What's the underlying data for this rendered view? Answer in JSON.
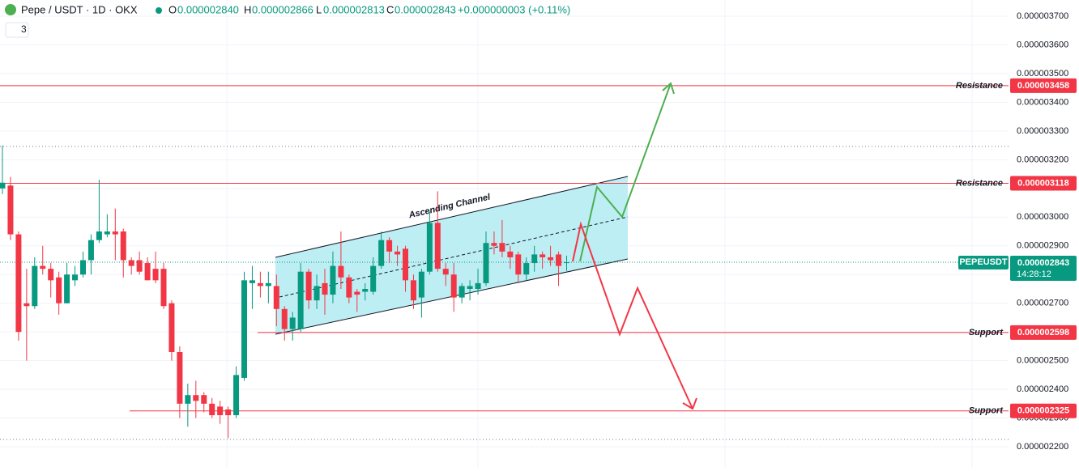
{
  "header": {
    "symbol": "Pepe / USDT · 1D · OKX",
    "o_label": "O",
    "open": "0.000002840",
    "h_label": "H",
    "high": "0.000002866",
    "l_label": "L",
    "low": "0.000002813",
    "c_label": "C",
    "close": "0.000002843",
    "change": "+0.000000003 (+0.11%)",
    "indicators": "3"
  },
  "chart_data": {
    "type": "candlestick",
    "open": [
      3.1e-06,
      3.11e-06,
      2.94e-06,
      2.7e-06,
      2.69e-06,
      2.83e-06,
      2.82e-06,
      2.79e-06,
      2.7e-06,
      2.78e-06,
      2.8e-06,
      2.85e-06,
      2.92e-06,
      2.94e-06,
      2.95e-06,
      2.95e-06,
      2.85e-06,
      2.85e-06,
      2.84e-06,
      2.82e-06,
      2.82e-06,
      2.7e-06,
      2.53e-06,
      2.35e-06,
      2.38e-06,
      2.38e-06,
      2.35e-06,
      2.34e-06,
      2.33e-06,
      2.31e-06,
      2.44e-06,
      2.77e-06,
      2.77e-06,
      2.76e-06,
      2.76e-06,
      2.68e-06,
      2.61e-06,
      2.61e-06,
      2.81e-06,
      2.71e-06,
      2.77e-06,
      2.73e-06,
      2.83e-06,
      2.79e-06,
      2.74e-06,
      2.74e-06,
      2.74e-06,
      2.83e-06,
      2.92e-06,
      2.88e-06,
      2.89e-06,
      2.78e-06,
      2.72e-06,
      2.81e-06,
      2.98e-06,
      2.82e-06,
      2.8e-06,
      2.72e-06,
      2.75e-06,
      2.75e-06,
      2.77e-06,
      2.91e-06,
      2.91e-06,
      2.88e-06,
      2.87e-06,
      2.8e-06,
      2.84e-06,
      2.87e-06,
      2.86e-06,
      2.87e-06,
      2.84e-06
    ],
    "high": [
      3.25e-06,
      3.14e-06,
      2.95e-06,
      2.82e-06,
      2.86e-06,
      2.9e-06,
      2.84e-06,
      2.81e-06,
      2.84e-06,
      2.83e-06,
      2.88e-06,
      2.94e-06,
      3.13e-06,
      3.01e-06,
      3.03e-06,
      2.96e-06,
      2.86e-06,
      2.88e-06,
      2.86e-06,
      2.88e-06,
      2.84e-06,
      2.71e-06,
      2.55e-06,
      2.42e-06,
      2.43e-06,
      2.39e-06,
      2.37e-06,
      2.36e-06,
      2.34e-06,
      2.48e-06,
      2.81e-06,
      2.83e-06,
      2.81e-06,
      2.81e-06,
      2.8e-06,
      2.69e-06,
      2.67e-06,
      2.84e-06,
      2.82e-06,
      2.8e-06,
      2.82e-06,
      2.88e-06,
      2.95e-06,
      2.8e-06,
      2.75e-06,
      2.77e-06,
      2.86e-06,
      2.95e-06,
      2.93e-06,
      2.9e-06,
      2.9e-06,
      2.8e-06,
      2.82e-06,
      3.02e-06,
      3.09e-06,
      2.84e-06,
      2.84e-06,
      2.77e-06,
      2.78e-06,
      2.82e-06,
      2.95e-06,
      2.95e-06,
      2.99e-06,
      2.9e-06,
      2.88e-06,
      2.86e-06,
      2.9e-06,
      2.88e-06,
      2.9e-06,
      2.88e-06,
      2.866e-06
    ],
    "low": [
      3.08e-06,
      2.92e-06,
      2.57e-06,
      2.5e-06,
      2.68e-06,
      2.8e-06,
      2.72e-06,
      2.66e-06,
      2.7e-06,
      2.76e-06,
      2.79e-06,
      2.8e-06,
      2.91e-06,
      2.93e-06,
      2.85e-06,
      2.79e-06,
      2.8e-06,
      2.8e-06,
      2.78e-06,
      2.77e-06,
      2.68e-06,
      2.5e-06,
      2.3e-06,
      2.27e-06,
      2.3e-06,
      2.32e-06,
      2.3e-06,
      2.28e-06,
      2.23e-06,
      2.3e-06,
      2.43e-06,
      2.68e-06,
      2.72e-06,
      2.7e-06,
      2.62e-06,
      2.57e-06,
      2.57e-06,
      2.6e-06,
      2.68e-06,
      2.68e-06,
      2.66e-06,
      2.7e-06,
      2.75e-06,
      2.7e-06,
      2.67e-06,
      2.71e-06,
      2.73e-06,
      2.82e-06,
      2.84e-06,
      2.83e-06,
      2.74e-06,
      2.68e-06,
      2.65e-06,
      2.8e-06,
      2.81e-06,
      2.76e-06,
      2.67e-06,
      2.7e-06,
      2.71e-06,
      2.73e-06,
      2.76e-06,
      2.87e-06,
      2.86e-06,
      2.82e-06,
      2.77e-06,
      2.78e-06,
      2.81e-06,
      2.82e-06,
      2.83e-06,
      2.76e-06,
      2.813e-06
    ],
    "close": [
      3.12e-06,
      2.94e-06,
      2.6e-06,
      2.69e-06,
      2.83e-06,
      2.82e-06,
      2.78e-06,
      2.7e-06,
      2.8e-06,
      2.8e-06,
      2.85e-06,
      2.92e-06,
      2.95e-06,
      2.95e-06,
      2.94e-06,
      2.85e-06,
      2.83e-06,
      2.81e-06,
      2.78e-06,
      2.78e-06,
      2.69e-06,
      2.53e-06,
      2.35e-06,
      2.38e-06,
      2.36e-06,
      2.35e-06,
      2.31e-06,
      2.31e-06,
      2.31e-06,
      2.45e-06,
      2.78e-06,
      2.78e-06,
      2.76e-06,
      2.77e-06,
      2.68e-06,
      2.61e-06,
      2.65e-06,
      2.81e-06,
      2.71e-06,
      2.76e-06,
      2.73e-06,
      2.83e-06,
      2.79e-06,
      2.72e-06,
      2.73e-06,
      2.75e-06,
      2.83e-06,
      2.92e-06,
      2.88e-06,
      2.87e-06,
      2.78e-06,
      2.71e-06,
      2.81e-06,
      2.98e-06,
      2.82e-06,
      2.8e-06,
      2.72e-06,
      2.76e-06,
      2.76e-06,
      2.77e-06,
      2.91e-06,
      2.9e-06,
      2.88e-06,
      2.86e-06,
      2.8e-06,
      2.84e-06,
      2.87e-06,
      2.86e-06,
      2.85e-06,
      2.83e-06,
      2.843e-06
    ],
    "up_color": "#089981",
    "down_color": "#f23645",
    "ylim": [
      2.1297e-06,
      3.7564e-06
    ],
    "yticks": [
      {
        "value": 3.7e-06,
        "label": "0.000003700"
      },
      {
        "value": 3.6e-06,
        "label": "0.000003600"
      },
      {
        "value": 3.5e-06,
        "label": "0.000003500"
      },
      {
        "value": 3.4e-06,
        "label": "0.000003400"
      },
      {
        "value": 3.3e-06,
        "label": "0.000003300"
      },
      {
        "value": 3.2e-06,
        "label": "0.000003200"
      },
      {
        "value": 3.1e-06,
        "label": "0.000003100"
      },
      {
        "value": 3e-06,
        "label": "0.000003000"
      },
      {
        "value": 2.9e-06,
        "label": "0.000002900"
      },
      {
        "value": 2.8e-06,
        "label": "0.000002800"
      },
      {
        "value": 2.7e-06,
        "label": "0.000002700"
      },
      {
        "value": 2.6e-06,
        "label": "0.000002600"
      },
      {
        "value": 2.5e-06,
        "label": "0.000002500"
      },
      {
        "value": 2.4e-06,
        "label": "0.000002400"
      },
      {
        "value": 2.3e-06,
        "label": "0.000002300"
      },
      {
        "value": 2.2e-06,
        "label": "0.000002200"
      }
    ],
    "grid": true,
    "levels": [
      {
        "name": "Resistance",
        "value": 3.458e-06,
        "value_label": "0.000003458",
        "color": "#f23645"
      },
      {
        "name": "Resistance",
        "value": 3.118e-06,
        "value_label": "0.000003118",
        "color": "#f23645"
      },
      {
        "name": "Support",
        "value": 2.598e-06,
        "value_label": "0.000002598",
        "color": "#f23645"
      },
      {
        "name": "Support",
        "value": 2.325e-06,
        "value_label": "0.000002325",
        "color": "#f23645"
      }
    ],
    "last_price": {
      "symbol": "PEPEUSDT",
      "value": 2.843e-06,
      "value_label": "0.000002843",
      "countdown": "14:28:12",
      "color": "#089981"
    },
    "annotation": "Ascending Channel"
  }
}
